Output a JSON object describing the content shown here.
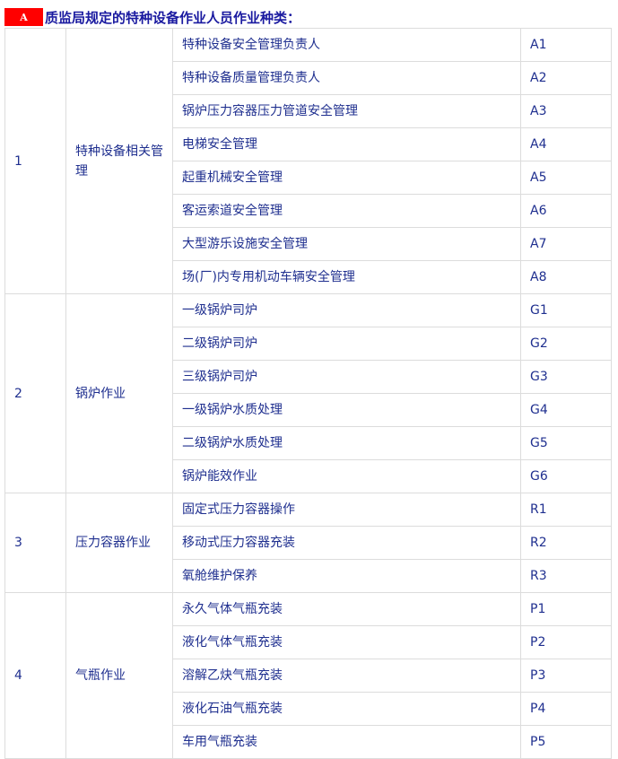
{
  "title": {
    "badge": "A",
    "text": "质监局规定的特种设备作业人员作业种类："
  },
  "groups": [
    {
      "no": "1",
      "name": "特种设备相关管理",
      "items": [
        {
          "name": "特种设备安全管理负责人",
          "code": "A1"
        },
        {
          "name": "特种设备质量管理负责人",
          "code": "A2"
        },
        {
          "name": "锅炉压力容器压力管道安全管理",
          "code": "A3"
        },
        {
          "name": "电梯安全管理",
          "code": "A4"
        },
        {
          "name": "起重机械安全管理",
          "code": "A5"
        },
        {
          "name": "客运索道安全管理",
          "code": "A6"
        },
        {
          "name": "大型游乐设施安全管理",
          "code": "A7"
        },
        {
          "name": "场(厂)内专用机动车辆安全管理",
          "code": "A8"
        }
      ]
    },
    {
      "no": "2",
      "name": "锅炉作业",
      "items": [
        {
          "name": "一级锅炉司炉",
          "code": "G1"
        },
        {
          "name": "二级锅炉司炉",
          "code": "G2"
        },
        {
          "name": "三级锅炉司炉",
          "code": "G3"
        },
        {
          "name": "一级锅炉水质处理",
          "code": "G4"
        },
        {
          "name": "二级锅炉水质处理",
          "code": "G5"
        },
        {
          "name": "锅炉能效作业",
          "code": "G6"
        }
      ]
    },
    {
      "no": "3",
      "name": "压力容器作业",
      "items": [
        {
          "name": "固定式压力容器操作",
          "code": "R1"
        },
        {
          "name": "移动式压力容器充装",
          "code": "R2"
        },
        {
          "name": "氧舱维护保养",
          "code": "R3"
        }
      ]
    },
    {
      "no": "4",
      "name": "气瓶作业",
      "items": [
        {
          "name": "永久气体气瓶充装",
          "code": "P1"
        },
        {
          "name": "液化气体气瓶充装",
          "code": "P2"
        },
        {
          "name": "溶解乙炔气瓶充装",
          "code": "P3"
        },
        {
          "name": "液化石油气瓶充装",
          "code": "P4"
        },
        {
          "name": "车用气瓶充装",
          "code": "P5"
        }
      ]
    }
  ]
}
